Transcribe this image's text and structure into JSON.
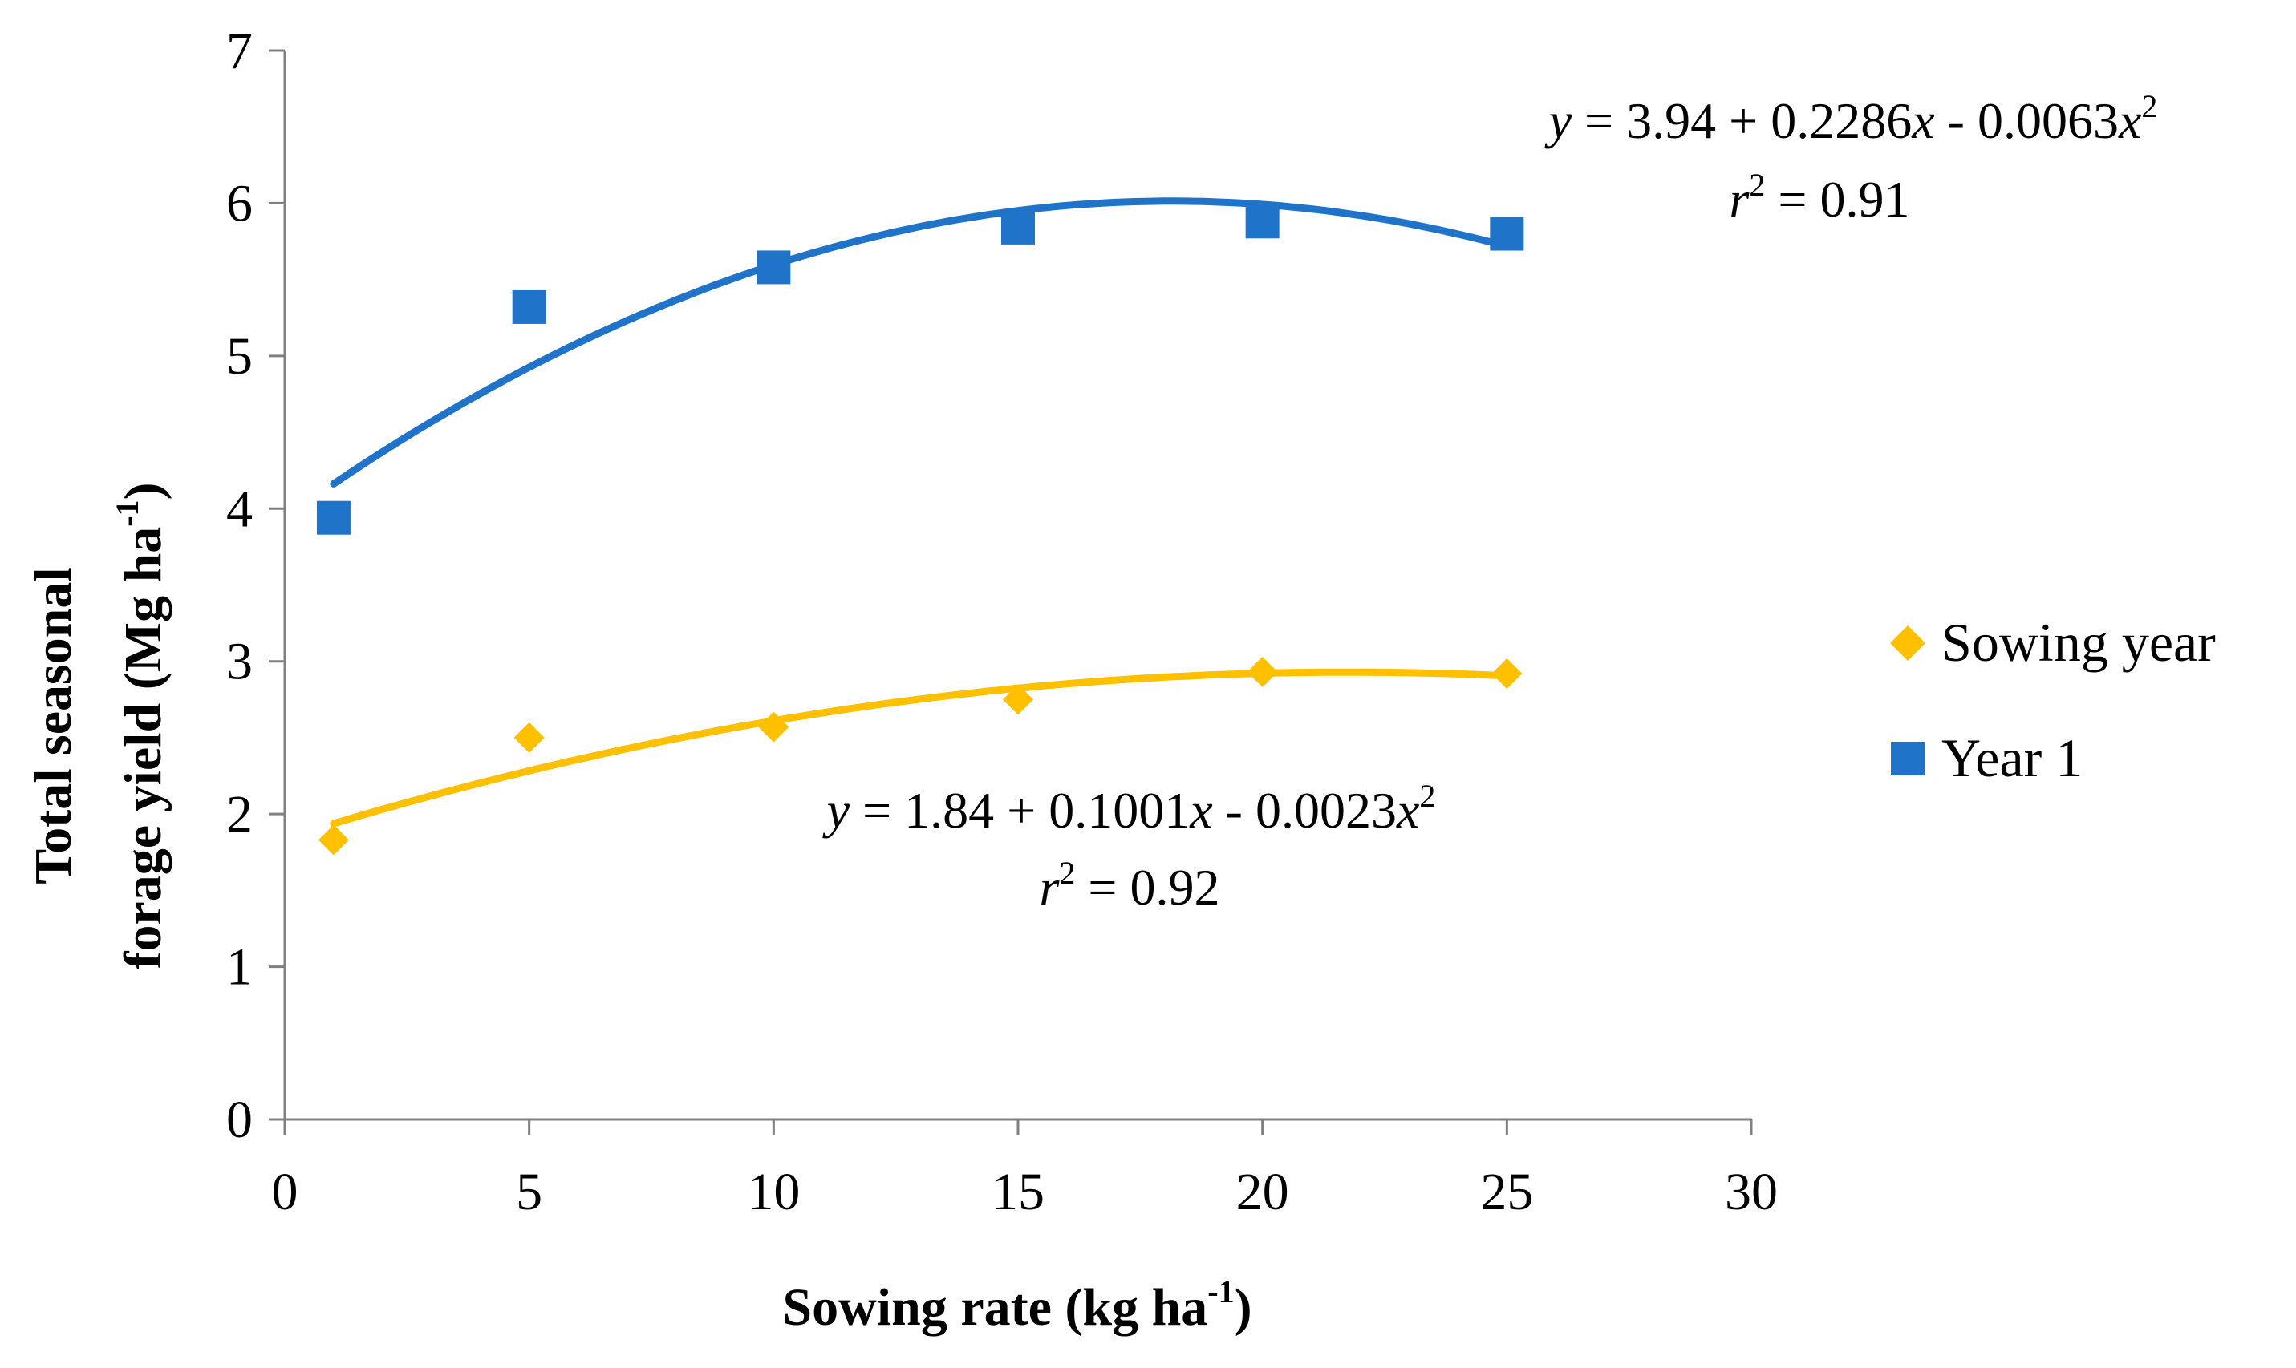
{
  "chart_data": {
    "type": "scatter",
    "title": "",
    "xlabel": {
      "main": "Sowing rate (kg ha",
      "sup": "-1",
      "close": ")"
    },
    "ylabel": {
      "line1": "Total seasonal",
      "line2_main": "forage yield (Mg ha",
      "line2_sup": "-1",
      "line2_close": ")"
    },
    "xlim": [
      0,
      30
    ],
    "ylim": [
      0,
      7
    ],
    "xticks": [
      0,
      5,
      10,
      15,
      20,
      25,
      30
    ],
    "yticks": [
      0,
      1,
      2,
      3,
      4,
      5,
      6,
      7
    ],
    "grid": false,
    "legend_position": "right",
    "series": [
      {
        "name": "Sowing year",
        "marker": "diamond",
        "color": "#FFC000",
        "x": [
          1,
          5,
          10,
          15,
          20,
          25
        ],
        "y": [
          1.83,
          2.5,
          2.57,
          2.75,
          2.93,
          2.92
        ],
        "trendline": {
          "type": "polynomial-2",
          "coefficients": [
            1.84,
            0.1001,
            -0.0023
          ],
          "x_range": [
            1,
            25
          ],
          "equation": {
            "y": "y",
            "rhs1": " = 1.84 + 0.1001",
            "x1": "x",
            "rhs2": " - 0.0023",
            "x2": "x",
            "pow": "2"
          },
          "r2": {
            "r": "r",
            "pow": "2",
            "value": " = 0.92"
          }
        }
      },
      {
        "name": "Year 1",
        "marker": "square",
        "color": "#1F73C8",
        "x": [
          1,
          5,
          10,
          15,
          20,
          25
        ],
        "y": [
          3.94,
          5.32,
          5.58,
          5.84,
          5.88,
          5.8
        ],
        "trendline": {
          "type": "polynomial-2",
          "coefficients": [
            3.94,
            0.2286,
            -0.0063
          ],
          "x_range": [
            1,
            25
          ],
          "equation": {
            "y": "y",
            "rhs1": " = 3.94 + 0.2286",
            "x1": "x",
            "rhs2": " - 0.0063",
            "x2": "x",
            "pow": "2"
          },
          "r2": {
            "r": "r",
            "pow": "2",
            "value": " = 0.91"
          }
        }
      }
    ]
  }
}
